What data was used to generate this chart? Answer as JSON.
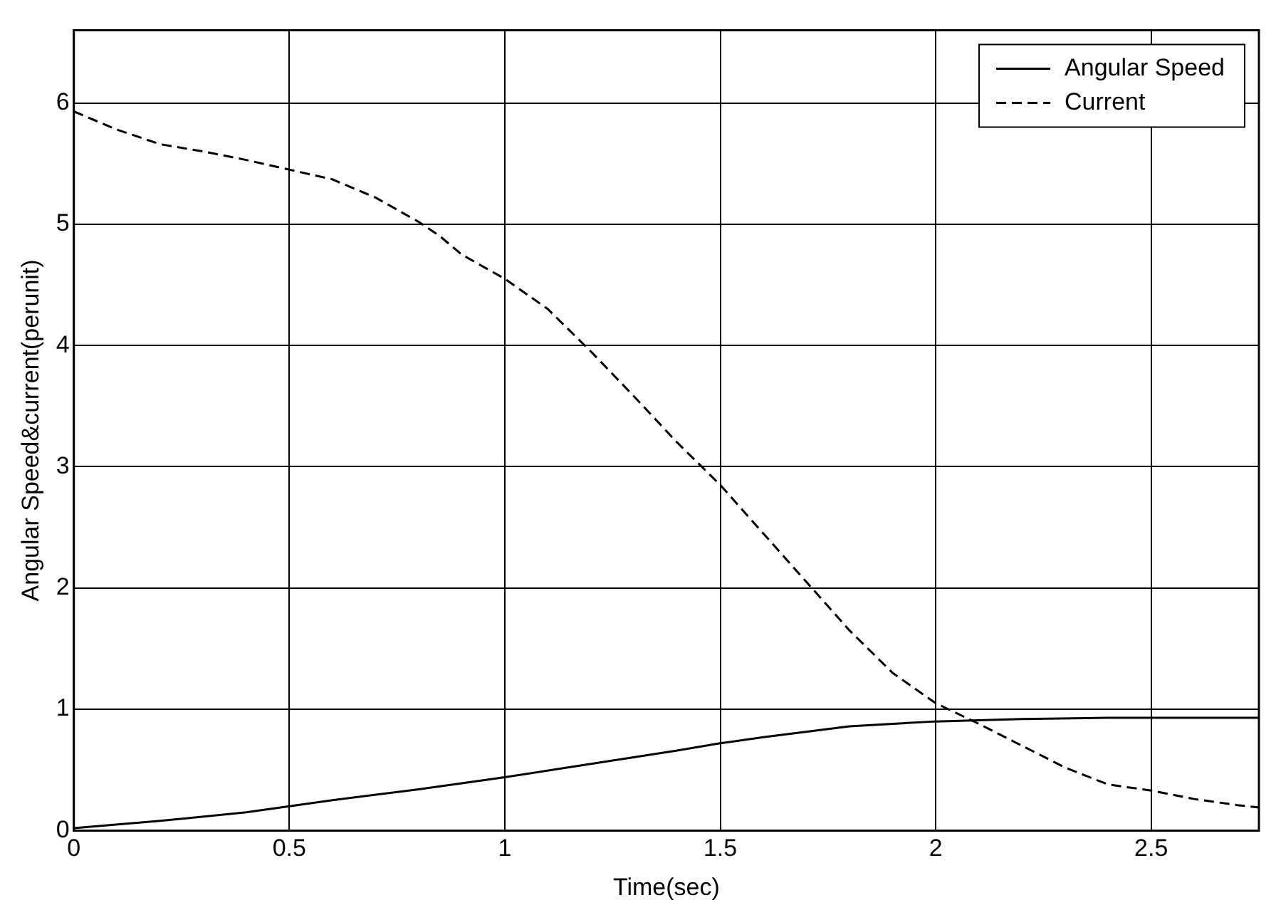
{
  "chart_data": {
    "type": "line",
    "xlabel": "Time(sec)",
    "ylabel": "Angular Speed&current(perunit)",
    "xlim": [
      0,
      2.75
    ],
    "xticks": [
      0,
      0.5,
      1,
      1.5,
      2,
      2.5
    ],
    "ylim": [
      0,
      6.6
    ],
    "yticks": [
      0,
      1,
      2,
      3,
      4,
      5,
      6
    ],
    "grid": true,
    "legend": "top right",
    "marker": "none",
    "series": [
      {
        "name": "Angular Speed",
        "color": "#000000",
        "line_style": "solid",
        "x": [
          0,
          0.2,
          0.4,
          0.5,
          0.6,
          0.8,
          1.0,
          1.2,
          1.4,
          1.5,
          1.6,
          1.8,
          2.0,
          2.1,
          2.2,
          2.4,
          2.6,
          2.75
        ],
        "values": [
          0.02,
          0.08,
          0.15,
          0.2,
          0.25,
          0.34,
          0.44,
          0.55,
          0.66,
          0.72,
          0.77,
          0.86,
          0.9,
          0.91,
          0.92,
          0.93,
          0.93,
          0.93
        ]
      },
      {
        "name": "Current",
        "color": "#000000",
        "line_style": "dashed",
        "x": [
          0,
          0.1,
          0.2,
          0.3,
          0.4,
          0.5,
          0.6,
          0.7,
          0.8,
          0.85,
          0.9,
          1.0,
          1.1,
          1.2,
          1.3,
          1.4,
          1.5,
          1.6,
          1.7,
          1.8,
          1.9,
          2.0,
          2.1,
          2.2,
          2.3,
          2.4,
          2.5,
          2.6,
          2.7,
          2.75
        ],
        "values": [
          5.93,
          5.78,
          5.66,
          5.6,
          5.53,
          5.45,
          5.37,
          5.22,
          5.02,
          4.9,
          4.75,
          4.55,
          4.3,
          3.95,
          3.58,
          3.2,
          2.85,
          2.45,
          2.05,
          1.65,
          1.3,
          1.05,
          0.88,
          0.7,
          0.52,
          0.38,
          0.33,
          0.26,
          0.21,
          0.19
        ]
      }
    ]
  }
}
